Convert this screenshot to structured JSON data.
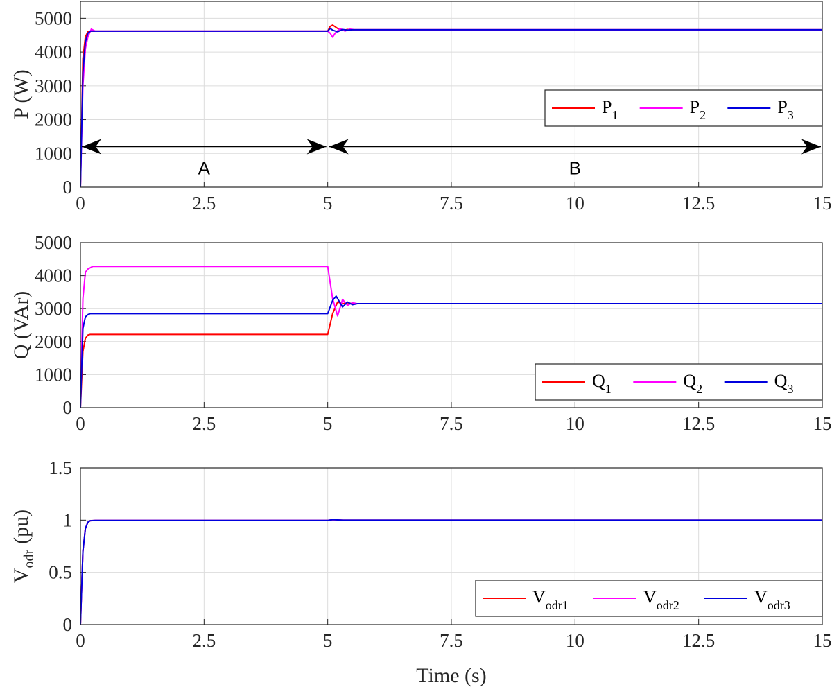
{
  "chart_data": [
    {
      "type": "line",
      "ylabel": "P (W)",
      "xlim": [
        0,
        15
      ],
      "ylim": [
        0,
        5500
      ],
      "xticks": [
        "0",
        "2.5",
        "5",
        "7.5",
        "10",
        "12.5",
        "15"
      ],
      "yticks": [
        "0",
        "1000",
        "2000",
        "3000",
        "4000",
        "5000"
      ],
      "grid": true,
      "legend_position": "center-right",
      "series": [
        {
          "name": "P",
          "sub": "1",
          "color": "#ff0000",
          "x": [
            0,
            0.05,
            0.1,
            0.15,
            0.2,
            0.3,
            5.0,
            5.05,
            5.1,
            5.2,
            5.3,
            5.4,
            5.5,
            6.0,
            15
          ],
          "y": [
            0,
            3800,
            4450,
            4600,
            4620,
            4620,
            4620,
            4760,
            4800,
            4700,
            4640,
            4670,
            4660,
            4660,
            4660
          ]
        },
        {
          "name": "P",
          "sub": "2",
          "color": "#ff00ff",
          "x": [
            0,
            0.05,
            0.1,
            0.15,
            0.22,
            0.3,
            0.4,
            5.0,
            5.05,
            5.1,
            5.15,
            5.25,
            5.35,
            5.45,
            5.55,
            6.0,
            15
          ],
          "y": [
            0,
            3000,
            4100,
            4450,
            4680,
            4620,
            4620,
            4620,
            4560,
            4440,
            4560,
            4700,
            4620,
            4680,
            4660,
            4660,
            4660
          ]
        },
        {
          "name": "P",
          "sub": "3",
          "color": "#0000dd",
          "x": [
            0,
            0.05,
            0.1,
            0.15,
            0.2,
            0.3,
            5.0,
            5.05,
            5.1,
            5.2,
            5.3,
            5.4,
            5.5,
            6.0,
            15
          ],
          "y": [
            0,
            3400,
            4300,
            4560,
            4620,
            4620,
            4620,
            4700,
            4650,
            4600,
            4670,
            4650,
            4660,
            4660,
            4660
          ]
        }
      ],
      "annotations": [
        {
          "text": "A",
          "x_start": 0,
          "x_end": 5.0,
          "y": 1200
        },
        {
          "text": "B",
          "x_start": 5.0,
          "x_end": 15,
          "y": 1200
        }
      ]
    },
    {
      "type": "line",
      "ylabel": "Q (VAr)",
      "xlim": [
        0,
        15
      ],
      "ylim": [
        0,
        5000
      ],
      "xticks": [
        "0",
        "2.5",
        "5",
        "7.5",
        "10",
        "12.5",
        "15"
      ],
      "yticks": [
        "0",
        "1000",
        "2000",
        "3000",
        "4000",
        "5000"
      ],
      "grid": true,
      "legend_position": "lower-right",
      "series": [
        {
          "name": "Q",
          "sub": "1",
          "color": "#ff0000",
          "x": [
            0,
            0.05,
            0.1,
            0.15,
            0.2,
            5.0,
            5.1,
            5.2,
            5.3,
            5.4,
            5.5,
            15
          ],
          "y": [
            0,
            1700,
            2100,
            2200,
            2220,
            2220,
            2850,
            3200,
            3150,
            3180,
            3150,
            3150
          ]
        },
        {
          "name": "Q",
          "sub": "2",
          "color": "#ff00ff",
          "x": [
            0,
            0.05,
            0.1,
            0.15,
            0.25,
            0.4,
            5.0,
            5.1,
            5.2,
            5.3,
            5.4,
            5.5,
            5.6,
            15
          ],
          "y": [
            0,
            3300,
            4100,
            4200,
            4280,
            4280,
            4280,
            3300,
            2780,
            3280,
            3100,
            3180,
            3150,
            3150
          ]
        },
        {
          "name": "Q",
          "sub": "3",
          "color": "#0000dd",
          "x": [
            0,
            0.05,
            0.1,
            0.15,
            0.2,
            0.3,
            5.0,
            5.1,
            5.17,
            5.3,
            5.4,
            5.5,
            5.6,
            15
          ],
          "y": [
            0,
            2400,
            2750,
            2820,
            2850,
            2850,
            2850,
            3250,
            3380,
            3050,
            3200,
            3120,
            3150,
            3150
          ]
        }
      ]
    },
    {
      "type": "line",
      "ylabel_main": "V",
      "ylabel_sub": "odr",
      "ylabel_unit": "(pu)",
      "xlabel": "Time (s)",
      "xlim": [
        0,
        15
      ],
      "ylim": [
        0,
        1.5
      ],
      "xticks": [
        "0",
        "2.5",
        "5",
        "7.5",
        "10",
        "12.5",
        "15"
      ],
      "yticks": [
        "0",
        "0.5",
        "1",
        "1.5"
      ],
      "grid": true,
      "legend_position": "lower-right",
      "series": [
        {
          "name": "V",
          "sub": "odr1",
          "color": "#ff0000",
          "x": [
            0,
            0.05,
            0.1,
            0.15,
            0.2,
            0.3,
            5.0,
            5.1,
            5.3,
            15
          ],
          "y": [
            0,
            0.7,
            0.92,
            0.98,
            0.995,
            0.997,
            0.997,
            1.005,
            1.0,
            1.0
          ]
        },
        {
          "name": "V",
          "sub": "odr2",
          "color": "#ff00ff",
          "x": [
            0,
            0.05,
            0.1,
            0.15,
            0.2,
            0.3,
            5.0,
            5.1,
            5.3,
            15
          ],
          "y": [
            0,
            0.7,
            0.92,
            0.98,
            0.995,
            0.997,
            0.997,
            1.005,
            1.0,
            1.0
          ]
        },
        {
          "name": "V",
          "sub": "odr3",
          "color": "#0000dd",
          "x": [
            0,
            0.05,
            0.1,
            0.15,
            0.2,
            0.3,
            5.0,
            5.1,
            5.3,
            15
          ],
          "y": [
            0,
            0.7,
            0.92,
            0.98,
            0.995,
            0.997,
            0.997,
            1.005,
            1.0,
            1.0
          ]
        }
      ]
    }
  ]
}
